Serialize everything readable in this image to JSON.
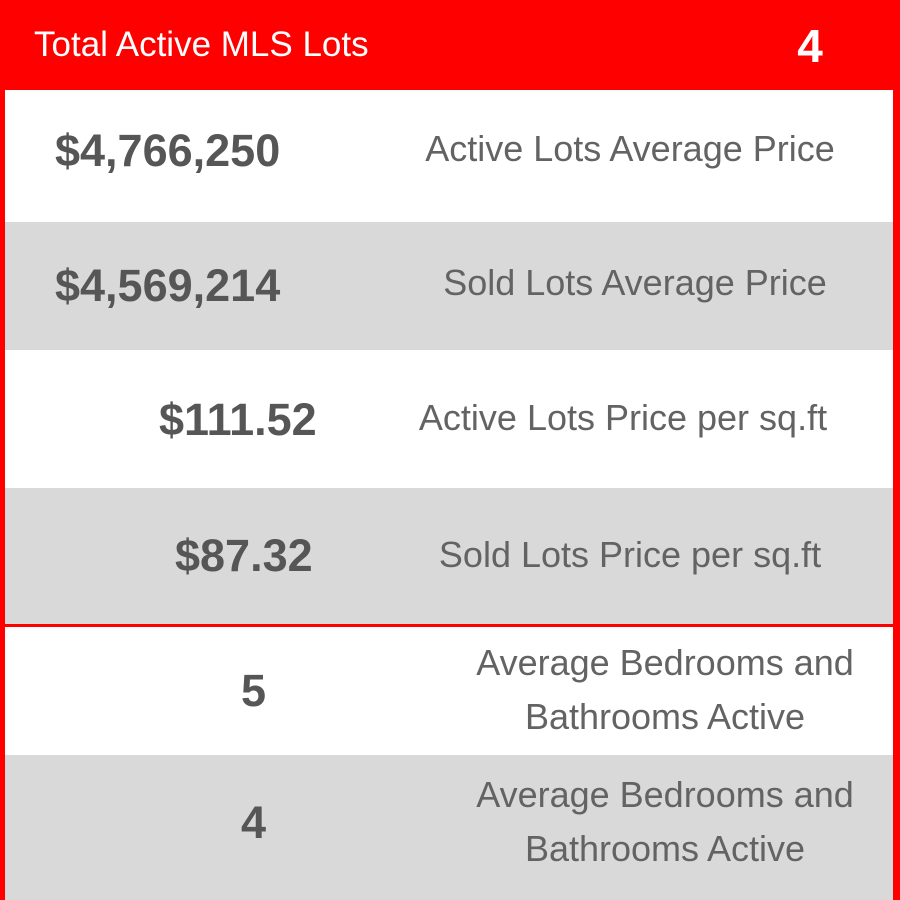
{
  "header": {
    "title": "Total Active MLS Lots",
    "count": "4"
  },
  "stats": [
    {
      "value": "$4,766,250",
      "label": "Active Lots Average Price"
    },
    {
      "value": "$4,569,214",
      "label": "Sold Lots Average Price"
    },
    {
      "value": "$111.52",
      "label": "Active Lots Price per sq.ft"
    },
    {
      "value": "$87.32",
      "label": "Sold Lots Price per sq.ft"
    },
    {
      "value": "5",
      "label_line1": "Average Bedrooms and",
      "label_line2": "Bathrooms Active"
    },
    {
      "value": "4",
      "label_line1": "Average Bedrooms and",
      "label_line2": "Bathrooms Active"
    }
  ],
  "colors": {
    "accent": "#ff0000",
    "row_alt": "#d9d9d9",
    "text": "#565656"
  }
}
